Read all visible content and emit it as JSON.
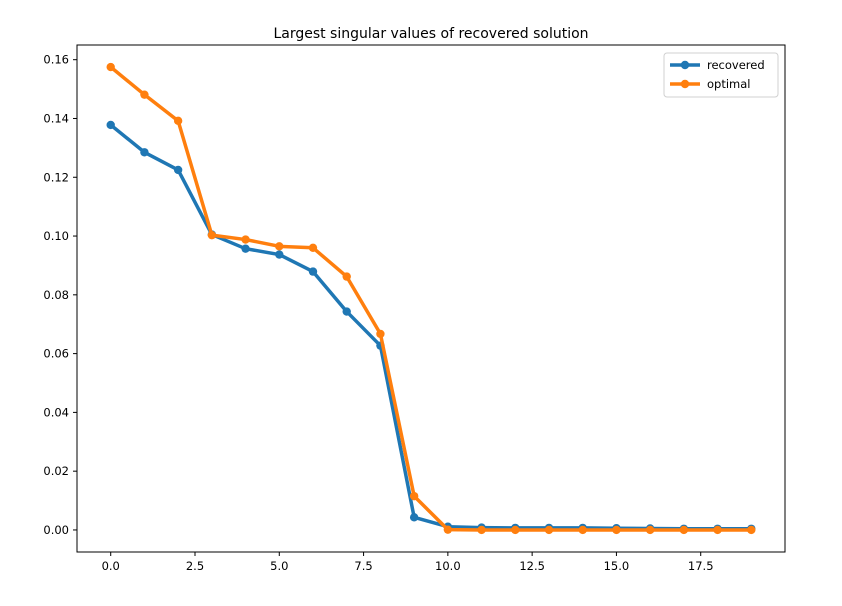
{
  "chart_data": {
    "type": "line",
    "title": "Largest singular values of recovered solution",
    "xlabel": "",
    "ylabel": "",
    "xlim": [
      -1,
      20
    ],
    "ylim": [
      -0.0075,
      0.165
    ],
    "xticks": [
      0.0,
      2.5,
      5.0,
      7.5,
      10.0,
      12.5,
      15.0,
      17.5
    ],
    "xtick_labels": [
      "0.0",
      "2.5",
      "5.0",
      "7.5",
      "10.0",
      "12.5",
      "15.0",
      "17.5"
    ],
    "yticks": [
      0.0,
      0.02,
      0.04,
      0.06,
      0.08,
      0.1,
      0.12,
      0.14,
      0.16
    ],
    "ytick_labels": [
      "0.00",
      "0.02",
      "0.04",
      "0.06",
      "0.08",
      "0.10",
      "0.12",
      "0.14",
      "0.16"
    ],
    "grid": false,
    "legend_position": "top-right",
    "x": [
      0,
      1,
      2,
      3,
      4,
      5,
      6,
      7,
      8,
      9,
      10,
      11,
      12,
      13,
      14,
      15,
      16,
      17,
      18,
      19
    ],
    "series": [
      {
        "name": "recovered",
        "color": "#1f77b4",
        "values": [
          0.1378,
          0.1285,
          0.1225,
          0.1005,
          0.0957,
          0.0937,
          0.0879,
          0.0743,
          0.0627,
          0.0043,
          0.0011,
          0.0008,
          0.0007,
          0.0007,
          0.0007,
          0.0006,
          0.0005,
          0.0004,
          0.0004,
          0.0004
        ]
      },
      {
        "name": "optimal",
        "color": "#ff7f0e",
        "values": [
          0.1575,
          0.1481,
          0.1392,
          0.1003,
          0.0988,
          0.0965,
          0.096,
          0.0862,
          0.0667,
          0.0115,
          0.0001,
          0.0,
          0.0,
          0.0,
          0.0,
          0.0,
          0.0,
          0.0,
          0.0,
          0.0
        ]
      }
    ]
  }
}
